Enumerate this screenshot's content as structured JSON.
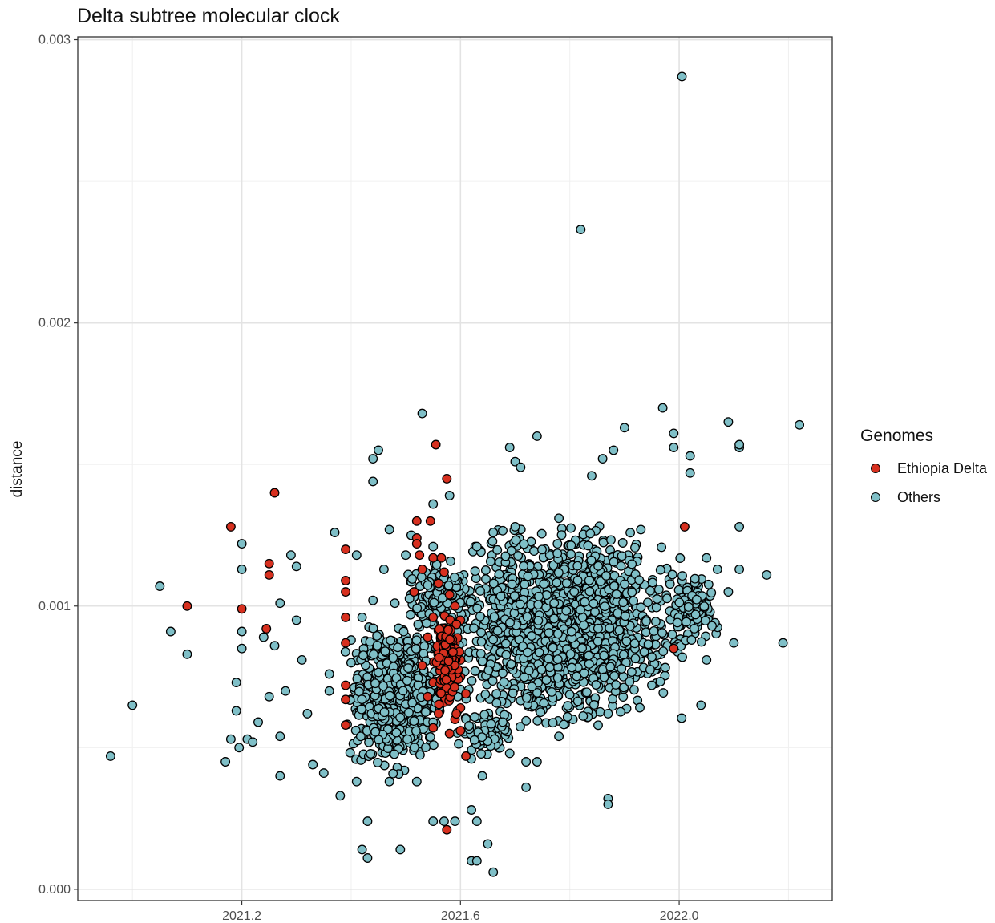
{
  "chart_data": {
    "type": "scatter",
    "title": "Delta subtree molecular clock",
    "xlabel": "",
    "ylabel": "distance",
    "xlim": [
      2020.9,
      2022.28
    ],
    "ylim": [
      -4e-05,
      0.00301
    ],
    "x_ticks": [
      2021.2,
      2021.6,
      2022.0
    ],
    "x_tick_labels": [
      "2021.2",
      "2021.6",
      "2022.0"
    ],
    "y_ticks": [
      0.0,
      0.001,
      0.002,
      0.003
    ],
    "y_tick_labels": [
      "0.000",
      "0.001",
      "0.002",
      "0.003"
    ],
    "grid": true,
    "legend": {
      "title": "Genomes",
      "position": "right"
    },
    "series": [
      {
        "name": "Ethiopia Delta",
        "color": "#d7301f",
        "points": [
          [
            2021.1,
            0.001
          ],
          [
            2021.18,
            0.00128
          ],
          [
            2021.2,
            0.00099
          ],
          [
            2021.245,
            0.00092
          ],
          [
            2021.25,
            0.00111
          ],
          [
            2021.25,
            0.00115
          ],
          [
            2021.26,
            0.0014
          ],
          [
            2021.39,
            0.0012
          ],
          [
            2021.39,
            0.00109
          ],
          [
            2021.39,
            0.00105
          ],
          [
            2021.39,
            0.00096
          ],
          [
            2021.39,
            0.00087
          ],
          [
            2021.39,
            0.00072
          ],
          [
            2021.39,
            0.00067
          ],
          [
            2021.39,
            0.00058
          ],
          [
            2021.52,
            0.0013
          ],
          [
            2021.52,
            0.00124
          ],
          [
            2021.52,
            0.00122
          ],
          [
            2021.525,
            0.00118
          ],
          [
            2021.515,
            0.00105
          ],
          [
            2021.555,
            0.00157
          ],
          [
            2021.545,
            0.0013
          ],
          [
            2021.575,
            0.00145
          ],
          [
            2021.55,
            0.00117
          ],
          [
            2021.565,
            0.00117
          ],
          [
            2021.53,
            0.00113
          ],
          [
            2021.56,
            0.00108
          ],
          [
            2021.57,
            0.00112
          ],
          [
            2021.58,
            0.00104
          ],
          [
            2021.59,
            0.001
          ],
          [
            2021.55,
            0.00096
          ],
          [
            2021.57,
            0.00092
          ],
          [
            2021.6,
            0.00095
          ],
          [
            2021.54,
            0.00089
          ],
          [
            2021.59,
            0.00087
          ],
          [
            2021.56,
            0.00083
          ],
          [
            2021.6,
            0.00081
          ],
          [
            2021.53,
            0.00079
          ],
          [
            2021.57,
            0.00077
          ],
          [
            2021.6,
            0.00075
          ],
          [
            2021.55,
            0.00073
          ],
          [
            2021.58,
            0.00071
          ],
          [
            2021.61,
            0.00069
          ],
          [
            2021.54,
            0.00068
          ],
          [
            2021.57,
            0.00066
          ],
          [
            2021.6,
            0.00064
          ],
          [
            2021.56,
            0.00062
          ],
          [
            2021.59,
            0.0006
          ],
          [
            2021.55,
            0.00057
          ],
          [
            2021.58,
            0.00055
          ],
          [
            2021.6,
            0.00056
          ],
          [
            2021.61,
            0.00047
          ],
          [
            2021.575,
            0.00021
          ],
          [
            2021.99,
            0.00085
          ],
          [
            2022.01,
            0.00128
          ]
        ]
      },
      {
        "name": "Others",
        "color": "#7fbfc7",
        "points": [
          [
            2022.005,
            0.00287
          ],
          [
            2021.82,
            0.00233
          ],
          [
            2020.96,
            0.00047
          ],
          [
            2021.0,
            0.00065
          ],
          [
            2021.05,
            0.00107
          ],
          [
            2021.07,
            0.00091
          ],
          [
            2021.1,
            0.00083
          ],
          [
            2021.17,
            0.00045
          ],
          [
            2021.18,
            0.00053
          ],
          [
            2021.19,
            0.00073
          ],
          [
            2021.19,
            0.00063
          ],
          [
            2021.195,
            0.0005
          ],
          [
            2021.2,
            0.00122
          ],
          [
            2021.2,
            0.00113
          ],
          [
            2021.2,
            0.00091
          ],
          [
            2021.2,
            0.00085
          ],
          [
            2021.21,
            0.00053
          ],
          [
            2021.22,
            0.00052
          ],
          [
            2021.23,
            0.00059
          ],
          [
            2021.24,
            0.00089
          ],
          [
            2021.25,
            0.00068
          ],
          [
            2021.26,
            0.00086
          ],
          [
            2021.27,
            0.00101
          ],
          [
            2021.27,
            0.00054
          ],
          [
            2021.27,
            0.0004
          ],
          [
            2021.28,
            0.0007
          ],
          [
            2021.29,
            0.00118
          ],
          [
            2021.3,
            0.00114
          ],
          [
            2021.3,
            0.00095
          ],
          [
            2021.31,
            0.00081
          ],
          [
            2021.32,
            0.00062
          ],
          [
            2021.33,
            0.00044
          ],
          [
            2021.35,
            0.00041
          ],
          [
            2021.37,
            0.00126
          ],
          [
            2021.38,
            0.00033
          ],
          [
            2021.41,
            0.00118
          ],
          [
            2021.44,
            0.00152
          ],
          [
            2021.45,
            0.00155
          ],
          [
            2021.44,
            0.00144
          ],
          [
            2021.43,
            0.00024
          ],
          [
            2021.42,
            0.00014
          ],
          [
            2021.43,
            0.00011
          ],
          [
            2021.49,
            0.00014
          ],
          [
            2021.53,
            0.00168
          ],
          [
            2021.55,
            0.00024
          ],
          [
            2021.57,
            0.00024
          ],
          [
            2021.59,
            0.00024
          ],
          [
            2021.62,
            0.00028
          ],
          [
            2021.63,
            0.00024
          ],
          [
            2021.62,
            0.0001
          ],
          [
            2021.63,
            0.0001
          ],
          [
            2021.65,
            0.00016
          ],
          [
            2021.66,
            6e-05
          ],
          [
            2021.64,
            0.0004
          ],
          [
            2021.72,
            0.00036
          ],
          [
            2021.72,
            0.00045
          ],
          [
            2021.74,
            0.00045
          ],
          [
            2021.87,
            0.00032
          ],
          [
            2021.87,
            0.0003
          ],
          [
            2021.97,
            0.0017
          ],
          [
            2021.99,
            0.00161
          ],
          [
            2021.99,
            0.00156
          ],
          [
            2022.02,
            0.00153
          ],
          [
            2022.02,
            0.00147
          ],
          [
            2022.04,
            0.00065
          ],
          [
            2022.05,
            0.00117
          ],
          [
            2022.07,
            0.00113
          ],
          [
            2022.09,
            0.00105
          ],
          [
            2022.09,
            0.00165
          ],
          [
            2022.1,
            0.00087
          ],
          [
            2022.11,
            0.00156
          ],
          [
            2022.11,
            0.00157
          ],
          [
            2022.11,
            0.00128
          ],
          [
            2022.11,
            0.00113
          ],
          [
            2022.16,
            0.00111
          ],
          [
            2022.19,
            0.00087
          ],
          [
            2022.22,
            0.00164
          ],
          [
            2021.9,
            0.00163
          ],
          [
            2021.88,
            0.00155
          ],
          [
            2021.86,
            0.00152
          ],
          [
            2021.84,
            0.00146
          ],
          [
            2021.74,
            0.0016
          ],
          [
            2021.69,
            0.00156
          ],
          [
            2021.7,
            0.00151
          ],
          [
            2021.71,
            0.00149
          ],
          [
            2021.58,
            0.00139
          ],
          [
            2021.55,
            0.00136
          ],
          [
            2021.47,
            0.00127
          ],
          [
            2021.46,
            0.00113
          ],
          [
            2021.42,
            0.00096
          ],
          [
            2021.44,
            0.00102
          ],
          [
            2021.48,
            0.00101
          ],
          [
            2021.5,
            0.00118
          ],
          [
            2021.51,
            0.00125
          ],
          [
            2021.55,
            0.00121
          ],
          [
            2021.63,
            0.00121
          ],
          [
            2021.66,
            0.00126
          ],
          [
            2021.7,
            0.00128
          ],
          [
            2021.78,
            0.00131
          ],
          [
            2021.93,
            0.00127
          ],
          [
            2022.03,
            0.00097
          ],
          [
            2022.06,
            0.00093
          ],
          [
            2022.05,
            0.00081
          ],
          [
            2021.95,
            0.00082
          ],
          [
            2021.95,
            0.00072
          ],
          [
            2021.87,
            0.00062
          ],
          [
            2021.78,
            0.00054
          ],
          [
            2021.69,
            0.00048
          ],
          [
            2021.62,
            0.00046
          ],
          [
            2021.52,
            0.00038
          ],
          [
            2021.47,
            0.00038
          ],
          [
            2021.41,
            0.00038
          ],
          [
            2021.36,
            0.00076
          ],
          [
            2021.36,
            0.0007
          ],
          [
            2021.4,
            0.0008
          ],
          [
            2021.4,
            0.00088
          ]
        ],
        "dense_clusters": [
          {
            "x": [
              2021.4,
              2021.56
            ],
            "y": [
              0.00044,
              0.00091
            ],
            "n": 700
          },
          {
            "x": [
              2021.6,
              2021.98
            ],
            "y": [
              0.00062,
              0.00124
            ],
            "n": 1500
          },
          {
            "x": [
              2021.98,
              2022.07
            ],
            "y": [
              0.00088,
              0.00113
            ],
            "n": 120
          },
          {
            "x": [
              2021.5,
              2021.62
            ],
            "y": [
              0.00092,
              0.00116
            ],
            "n": 130
          },
          {
            "x": [
              2021.6,
              2021.7
            ],
            "y": [
              0.00048,
              0.00062
            ],
            "n": 90
          }
        ]
      }
    ]
  }
}
